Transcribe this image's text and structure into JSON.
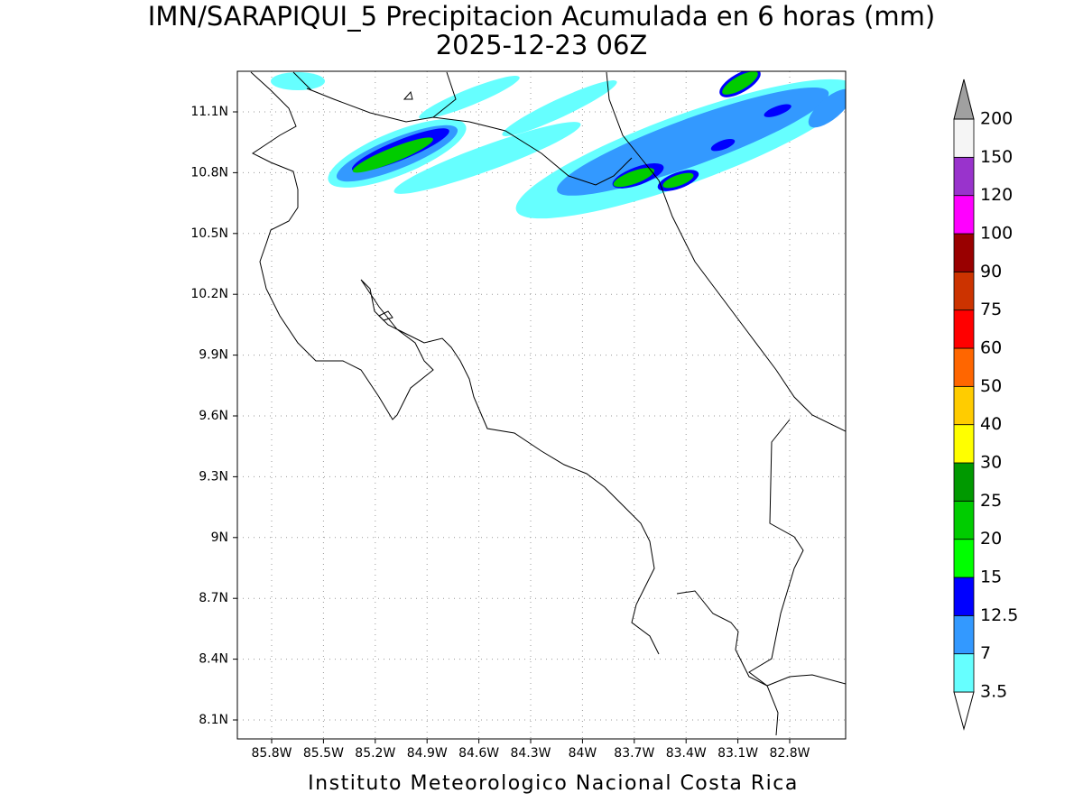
{
  "title": "IMN/SARAPIQUI_5 Precipitacion Acumulada en 6 horas (mm)",
  "subtitle": "2025-12-23 06Z",
  "footer": "Instituto Meteorologico Nacional Costa Rica",
  "lat_labels": [
    "11.1N",
    "10.8N",
    "10.5N",
    "10.2N",
    "9.9N",
    "9.6N",
    "9.3N",
    "9N",
    "8.7N",
    "8.4N",
    "8.1N"
  ],
  "lon_labels": [
    "85.8W",
    "85.5W",
    "85.2W",
    "84.9W",
    "84.6W",
    "84.3W",
    "84W",
    "83.7W",
    "83.4W",
    "83.1W",
    "82.8W"
  ],
  "colorbar": {
    "levels": [
      3.5,
      7,
      12.5,
      15,
      20,
      25,
      30,
      40,
      50,
      60,
      75,
      90,
      100,
      120,
      150,
      200
    ],
    "colors": [
      "#66ffff",
      "#3399ff",
      "#0000ff",
      "#00ff00",
      "#00cc00",
      "#009900",
      "#ffff00",
      "#ffcc00",
      "#ff6600",
      "#ff0000",
      "#cc3300",
      "#990000",
      "#ff00ff",
      "#9933cc",
      "#f5f5f5"
    ],
    "under_color": "#ffffff",
    "over_color": "#a0a0a0"
  }
}
